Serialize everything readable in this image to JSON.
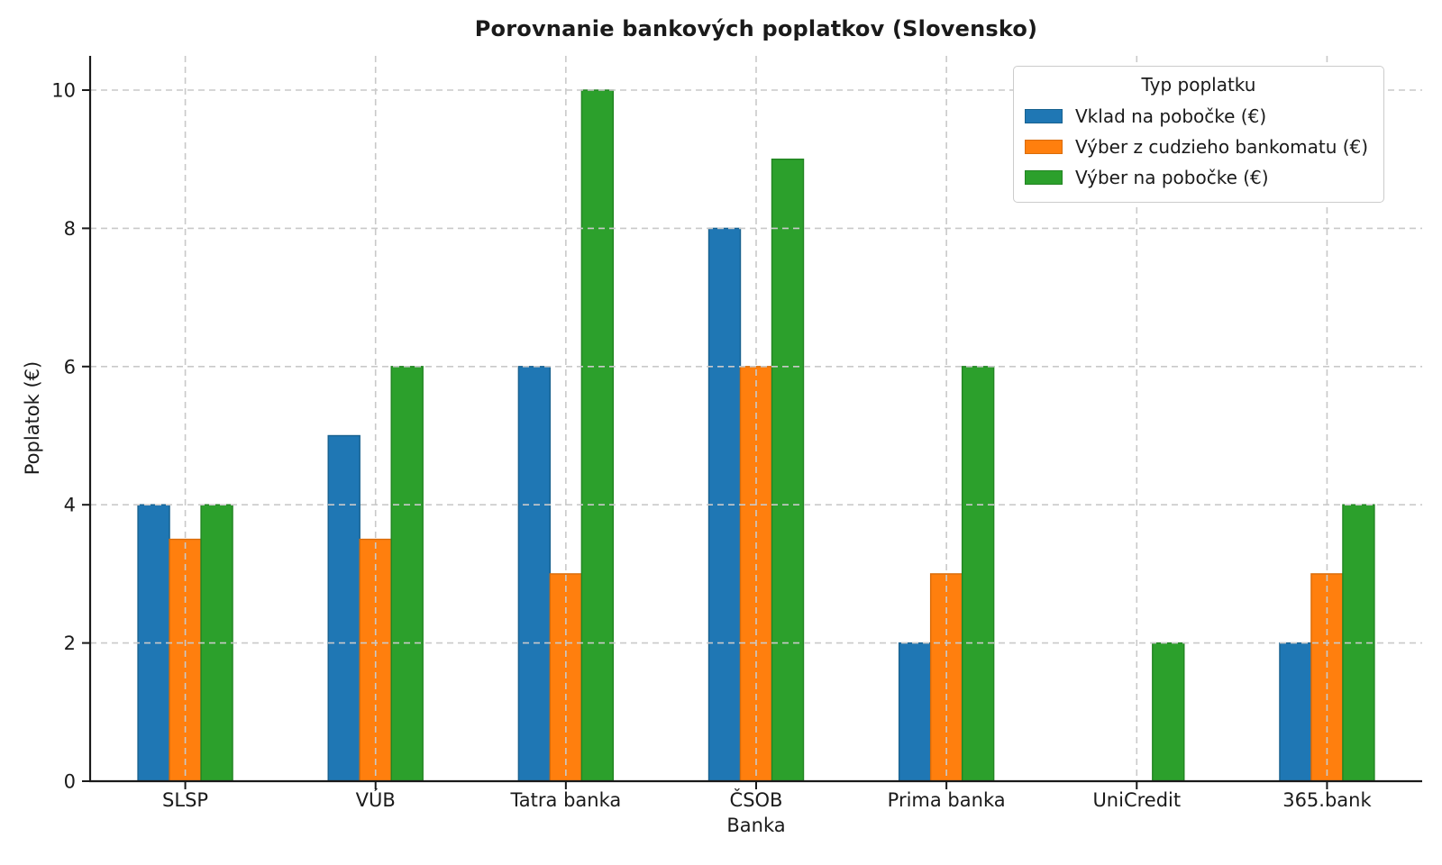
{
  "chart_data": {
    "type": "bar",
    "title": "Porovnanie bankových poplatkov (Slovensko)",
    "xlabel": "Banka",
    "ylabel": "Poplatok (€)",
    "categories": [
      "SLSP",
      "VÚB",
      "Tatra banka",
      "ČSOB",
      "Prima banka",
      "UniCredit",
      "365.bank"
    ],
    "series": [
      {
        "name": "Vklad na pobočke (€)",
        "color": "#1f77b4",
        "edge_color": "#18618f",
        "values": [
          4,
          5,
          6,
          8,
          2,
          0,
          2
        ]
      },
      {
        "name": "Výber z cudzieho bankomatu (€)",
        "color": "#ff7f0e",
        "edge_color": "#d96c0a",
        "values": [
          3.5,
          3.5,
          3,
          6,
          3,
          0,
          3
        ]
      },
      {
        "name": "Výber na pobočke (€)",
        "color": "#2ca02c",
        "edge_color": "#228422",
        "values": [
          4,
          6,
          10,
          9,
          6,
          2,
          4
        ]
      }
    ],
    "legend_title": "Typ poplatku",
    "legend_position": "upper right",
    "ylim": [
      0,
      10.45
    ],
    "yticks": [
      0,
      2,
      4,
      6,
      8,
      10
    ],
    "grid": true,
    "grid_style": "dashed",
    "grid_color": "#c9c9c9",
    "axis_color": "#1a1a1a"
  }
}
